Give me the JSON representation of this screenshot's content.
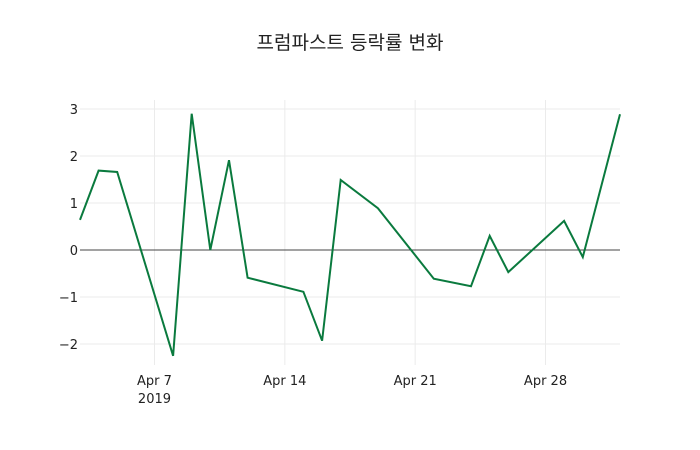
{
  "chart_data": {
    "type": "line",
    "title": "프럼파스트 등락률 변화",
    "xlabel": "",
    "ylabel": "",
    "x": [
      "2019-04-03",
      "2019-04-04",
      "2019-04-05",
      "2019-04-08",
      "2019-04-09",
      "2019-04-10",
      "2019-04-11",
      "2019-04-12",
      "2019-04-15",
      "2019-04-16",
      "2019-04-17",
      "2019-04-19",
      "2019-04-22",
      "2019-04-24",
      "2019-04-25",
      "2019-04-26",
      "2019-04-29",
      "2019-04-30",
      "2019-05-02"
    ],
    "series": [
      {
        "name": "등락률",
        "color": "#0a7a3e",
        "values": [
          0.64,
          1.69,
          1.66,
          -2.25,
          2.9,
          0.0,
          1.91,
          -0.59,
          -0.89,
          -1.93,
          1.49,
          0.89,
          -0.61,
          -0.77,
          0.3,
          -0.47,
          0.62,
          -0.15,
          2.89
        ]
      }
    ],
    "x_ticks": [
      {
        "date": "2019-04-07",
        "label": "Apr 7",
        "sublabel": "2019"
      },
      {
        "date": "2019-04-14",
        "label": "Apr 14",
        "sublabel": ""
      },
      {
        "date": "2019-04-21",
        "label": "Apr 21",
        "sublabel": ""
      },
      {
        "date": "2019-04-28",
        "label": "Apr 28",
        "sublabel": ""
      }
    ],
    "y_ticks": [
      3,
      2,
      1,
      0,
      -1,
      -2
    ],
    "y_tick_labels": [
      "3",
      "2",
      "1",
      "0",
      "−1",
      "−2"
    ],
    "xlim": [
      "2019-04-03",
      "2019-05-02"
    ],
    "ylim": [
      -2.4,
      3.2
    ],
    "grid": true,
    "zero_line": true,
    "legend": "none"
  }
}
